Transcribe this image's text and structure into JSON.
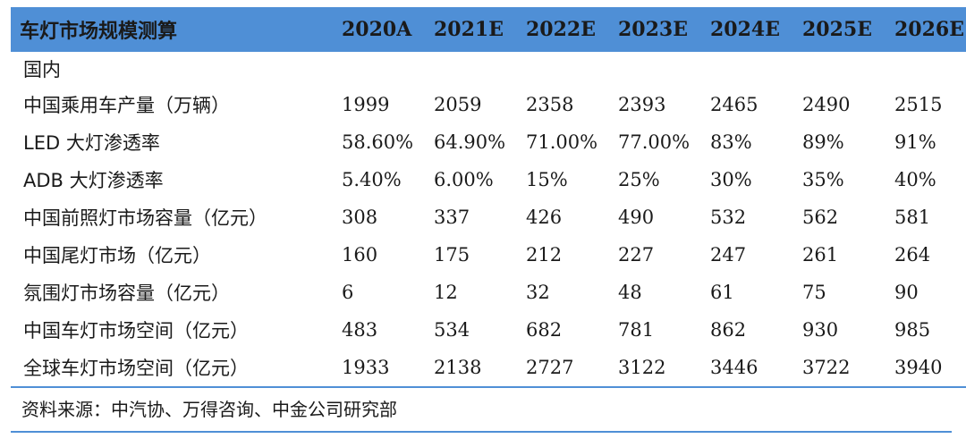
{
  "table": {
    "title": "车灯市场规模测算",
    "years": [
      "2020A",
      "2021E",
      "2022E",
      "2023E",
      "2024E",
      "2025E",
      "2026E"
    ],
    "section": "国内",
    "rows": [
      {
        "label": "中国乘用车产量（万辆）",
        "values": [
          "1999",
          "2059",
          "2358",
          "2393",
          "2465",
          "2490",
          "2515"
        ]
      },
      {
        "label": "LED 大灯渗透率",
        "values": [
          "58.60%",
          "64.90%",
          "71.00%",
          "77.00%",
          "83%",
          "89%",
          "91%"
        ]
      },
      {
        "label": "ADB 大灯渗透率",
        "values": [
          "5.40%",
          "6.00%",
          "15%",
          "25%",
          "30%",
          "35%",
          "40%"
        ]
      },
      {
        "label": "中国前照灯市场容量（亿元）",
        "values": [
          "308",
          "337",
          "426",
          "490",
          "532",
          "562",
          "581"
        ]
      },
      {
        "label": "中国尾灯市场（亿元）",
        "values": [
          "160",
          "175",
          "212",
          "227",
          "247",
          "261",
          "264"
        ]
      },
      {
        "label": "氛围灯市场容量（亿元）",
        "values": [
          "6",
          "12",
          "32",
          "48",
          "61",
          "75",
          "90"
        ]
      },
      {
        "label": "中国车灯市场空间（亿元）",
        "values": [
          "483",
          "534",
          "682",
          "781",
          "862",
          "930",
          "985"
        ]
      },
      {
        "label": "全球车灯市场空间（亿元）",
        "values": [
          "1933",
          "2138",
          "2727",
          "3122",
          "3446",
          "3722",
          "3940"
        ]
      }
    ]
  },
  "source": "资料来源：中汽协、万得咨询、中金公司研究部",
  "colors": {
    "header_bg": "#4f8fd6",
    "rule": "#4f8fd6"
  }
}
